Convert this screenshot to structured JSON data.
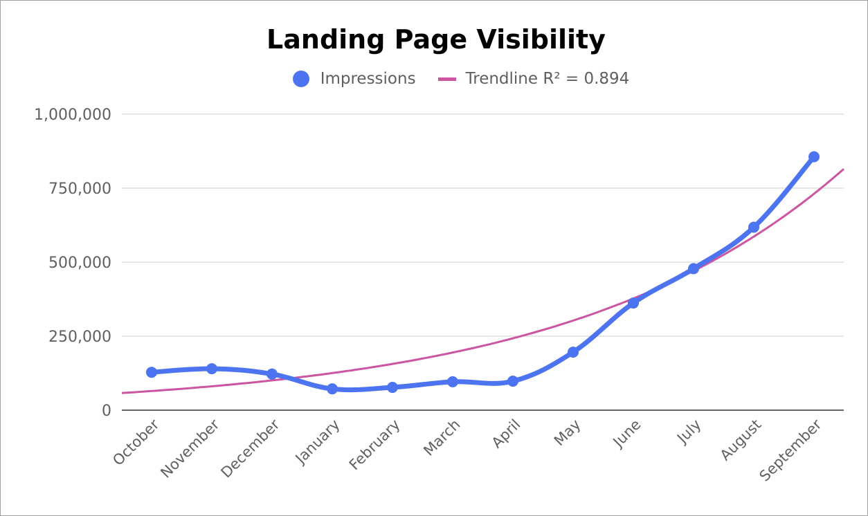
{
  "chart_data": {
    "type": "line",
    "title": "Landing Page Visibility",
    "xlabel": "",
    "ylabel": "",
    "categories": [
      "October",
      "November",
      "December",
      "January",
      "February",
      "March",
      "April",
      "May",
      "June",
      "July",
      "August",
      "September"
    ],
    "series": [
      {
        "name": "Impressions",
        "color": "#4d74f0",
        "values": [
          128000,
          140000,
          122000,
          72000,
          77000,
          96000,
          98000,
          196000,
          362000,
          478000,
          618000,
          856000
        ]
      }
    ],
    "trendline": {
      "label": "Trendline R² = 0.894",
      "color": "#cc55a2",
      "start_value": 58000,
      "end_value": 815000,
      "type": "exponential"
    },
    "ylim": [
      0,
      1000000
    ],
    "yticks": [
      0,
      250000,
      500000,
      750000,
      1000000
    ],
    "ytick_labels": [
      "0",
      "250,000",
      "500,000",
      "750,000",
      "1,000,000"
    ],
    "grid": true,
    "legend_position": "top"
  }
}
